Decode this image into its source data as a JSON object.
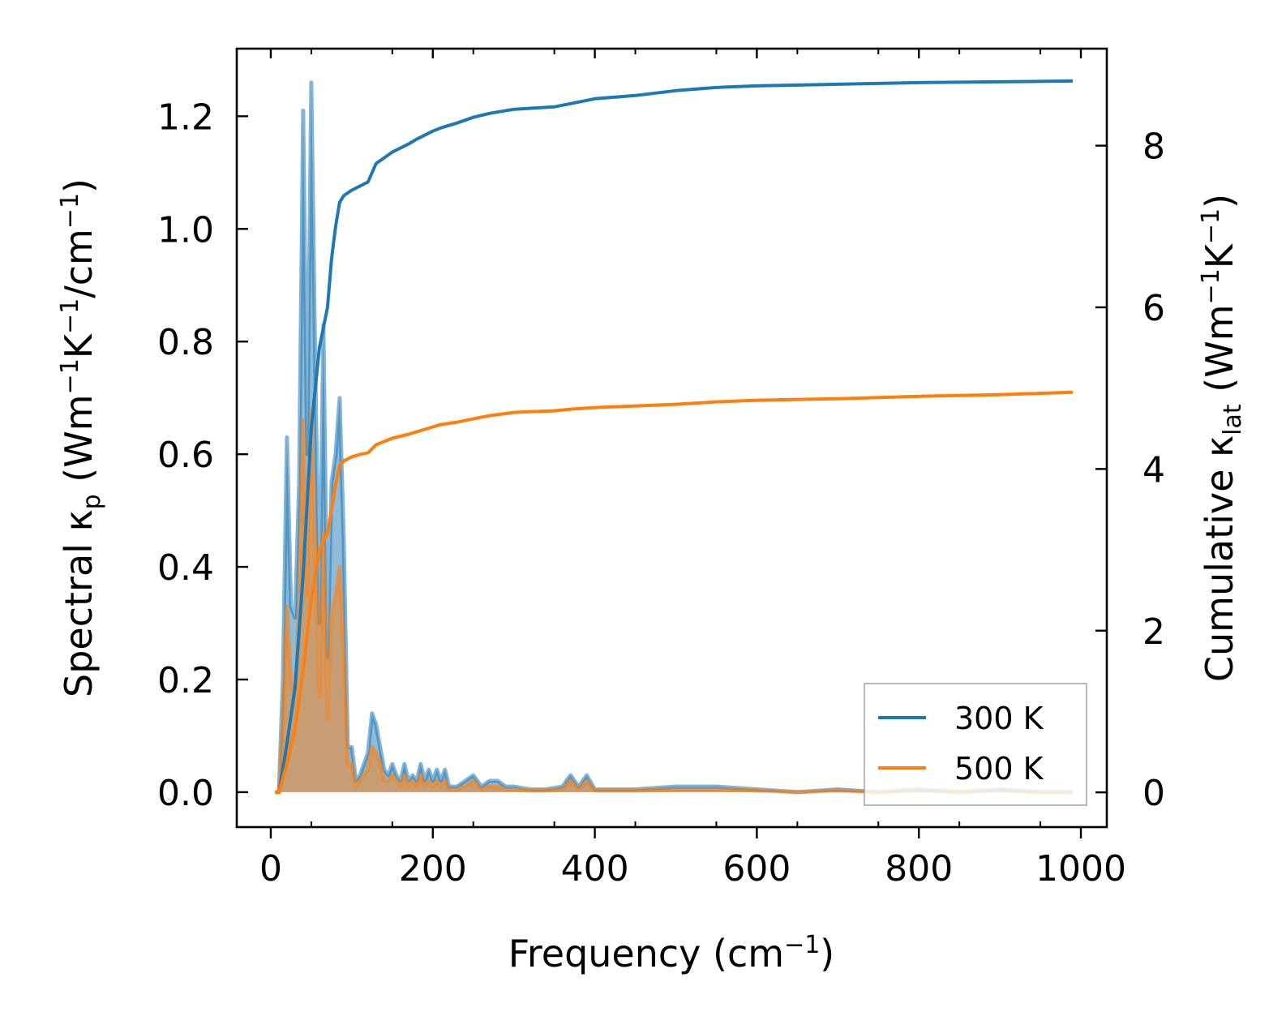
{
  "chart_data": {
    "type": "line",
    "title": "",
    "xlabel": "Frequency (cm⁻¹)",
    "xlabel_base": "Frequency (cm",
    "xlabel_sup": "−1",
    "xlabel_close": ")",
    "ylabel_left": "Spectral κₚ (Wm⁻¹K⁻¹/cm⁻¹)",
    "ylabel_right": "Cumulative κ_lat (Wm⁻¹K⁻¹)",
    "ylabel_left_parts": {
      "pre": "Spectral κ",
      "sub": "p",
      "mid": " (Wm",
      "sup1": "−1",
      "k": "K",
      "sup2": "−1",
      "tail": "/cm",
      "sup3": "−1",
      "close": ")"
    },
    "ylabel_right_parts": {
      "pre": "Cumulative κ",
      "sub": "lat",
      "mid": " (Wm",
      "sup1": "−1",
      "k": "K",
      "sup2": "−1",
      "close": ")"
    },
    "xlim": [
      -42,
      1032
    ],
    "ylim_left": [
      -0.062,
      1.32
    ],
    "ylim_right": [
      -0.43,
      9.2
    ],
    "xticks": [
      0,
      200,
      400,
      600,
      800,
      1000
    ],
    "xtick_labels": [
      "0",
      "200",
      "400",
      "600",
      "800",
      "1000"
    ],
    "yticks_left": [
      0.0,
      0.2,
      0.4,
      0.6,
      0.8,
      1.0,
      1.2
    ],
    "ytick_left_labels": [
      "0.0",
      "0.2",
      "0.4",
      "0.6",
      "0.8",
      "1.0",
      "1.2"
    ],
    "yticks_right": [
      0,
      2,
      4,
      6,
      8
    ],
    "ytick_right_labels": [
      "0",
      "2",
      "4",
      "6",
      "8"
    ],
    "grid": false,
    "legend": {
      "position": "lower-right",
      "entries": [
        {
          "label": "300 K",
          "color": "#1f77b4"
        },
        {
          "label": "500 K",
          "color": "#ff7f0e"
        }
      ]
    },
    "series": [
      {
        "name": "300 K",
        "kind": "spectral",
        "axis": "left",
        "color": "#1f77b4",
        "x": [
          5,
          10,
          15,
          20,
          25,
          30,
          35,
          40,
          45,
          50,
          55,
          60,
          65,
          70,
          75,
          80,
          85,
          90,
          95,
          100,
          105,
          110,
          115,
          120,
          125,
          130,
          135,
          140,
          145,
          150,
          155,
          160,
          165,
          170,
          175,
          180,
          185,
          190,
          195,
          200,
          205,
          210,
          215,
          220,
          230,
          240,
          250,
          260,
          270,
          280,
          290,
          300,
          320,
          340,
          360,
          370,
          380,
          390,
          400,
          450,
          500,
          550,
          600,
          650,
          700,
          750,
          800,
          850,
          900,
          950,
          990
        ],
        "y": [
          0.0,
          0.0,
          0.2,
          0.63,
          0.33,
          0.31,
          0.55,
          1.21,
          0.6,
          1.26,
          0.75,
          0.3,
          0.83,
          0.24,
          0.55,
          0.6,
          0.7,
          0.45,
          0.08,
          0.08,
          0.02,
          0.03,
          0.05,
          0.07,
          0.14,
          0.12,
          0.08,
          0.04,
          0.03,
          0.05,
          0.03,
          0.02,
          0.05,
          0.02,
          0.03,
          0.02,
          0.05,
          0.02,
          0.04,
          0.02,
          0.04,
          0.02,
          0.04,
          0.01,
          0.01,
          0.02,
          0.03,
          0.01,
          0.02,
          0.02,
          0.01,
          0.01,
          0.005,
          0.005,
          0.01,
          0.03,
          0.01,
          0.03,
          0.005,
          0.005,
          0.01,
          0.01,
          0.005,
          0.0,
          0.005,
          0.0,
          0.005,
          0.0,
          0.005,
          0.0,
          0.0
        ]
      },
      {
        "name": "500 K",
        "kind": "spectral",
        "axis": "left",
        "color": "#ff7f0e",
        "x": [
          5,
          10,
          15,
          20,
          25,
          30,
          35,
          40,
          45,
          50,
          55,
          60,
          65,
          70,
          75,
          80,
          85,
          90,
          95,
          100,
          105,
          110,
          115,
          120,
          125,
          130,
          135,
          140,
          145,
          150,
          155,
          160,
          165,
          170,
          175,
          180,
          185,
          190,
          195,
          200,
          205,
          210,
          215,
          220,
          230,
          240,
          250,
          260,
          270,
          280,
          290,
          300,
          320,
          340,
          360,
          370,
          380,
          390,
          400,
          450,
          500,
          550,
          600,
          650,
          700,
          750,
          800,
          850,
          900,
          950,
          990
        ],
        "y": [
          0.0,
          0.0,
          0.12,
          0.33,
          0.19,
          0.18,
          0.32,
          0.66,
          0.35,
          0.68,
          0.42,
          0.17,
          0.46,
          0.13,
          0.32,
          0.35,
          0.4,
          0.25,
          0.05,
          0.05,
          0.01,
          0.02,
          0.03,
          0.04,
          0.08,
          0.07,
          0.05,
          0.02,
          0.02,
          0.03,
          0.02,
          0.01,
          0.03,
          0.01,
          0.02,
          0.01,
          0.03,
          0.01,
          0.02,
          0.01,
          0.02,
          0.01,
          0.02,
          0.005,
          0.005,
          0.01,
          0.02,
          0.005,
          0.01,
          0.01,
          0.005,
          0.005,
          0.003,
          0.003,
          0.005,
          0.02,
          0.005,
          0.02,
          0.003,
          0.003,
          0.005,
          0.005,
          0.003,
          0.0,
          0.003,
          0.0,
          0.003,
          0.0,
          0.003,
          0.0,
          0.0
        ]
      },
      {
        "name": "300 K",
        "kind": "cumulative",
        "axis": "right",
        "color": "#1f77b4",
        "x": [
          5,
          10,
          20,
          30,
          40,
          50,
          60,
          70,
          75,
          80,
          85,
          90,
          100,
          110,
          120,
          130,
          150,
          170,
          180,
          200,
          210,
          230,
          250,
          270,
          300,
          350,
          370,
          400,
          450,
          500,
          550,
          600,
          700,
          800,
          900,
          990
        ],
        "y": [
          0.0,
          0.0,
          0.6,
          1.3,
          2.7,
          4.5,
          5.5,
          6.0,
          6.6,
          7.0,
          7.3,
          7.38,
          7.45,
          7.5,
          7.55,
          7.78,
          7.92,
          8.02,
          8.08,
          8.18,
          8.22,
          8.28,
          8.35,
          8.4,
          8.45,
          8.48,
          8.52,
          8.58,
          8.62,
          8.68,
          8.72,
          8.74,
          8.76,
          8.78,
          8.79,
          8.8
        ]
      },
      {
        "name": "500 K",
        "kind": "cumulative",
        "axis": "right",
        "color": "#ff7f0e",
        "x": [
          5,
          10,
          20,
          30,
          40,
          50,
          60,
          70,
          75,
          80,
          85,
          90,
          100,
          110,
          120,
          130,
          150,
          170,
          180,
          200,
          210,
          230,
          250,
          270,
          300,
          350,
          370,
          400,
          450,
          500,
          550,
          600,
          700,
          800,
          900,
          990
        ],
        "y": [
          0.0,
          0.0,
          0.35,
          0.8,
          1.5,
          2.4,
          3.0,
          3.2,
          3.5,
          3.8,
          4.05,
          4.1,
          4.15,
          4.18,
          4.2,
          4.3,
          4.38,
          4.43,
          4.46,
          4.52,
          4.55,
          4.58,
          4.62,
          4.66,
          4.7,
          4.72,
          4.74,
          4.76,
          4.78,
          4.8,
          4.83,
          4.85,
          4.87,
          4.9,
          4.92,
          4.95
        ]
      }
    ]
  }
}
